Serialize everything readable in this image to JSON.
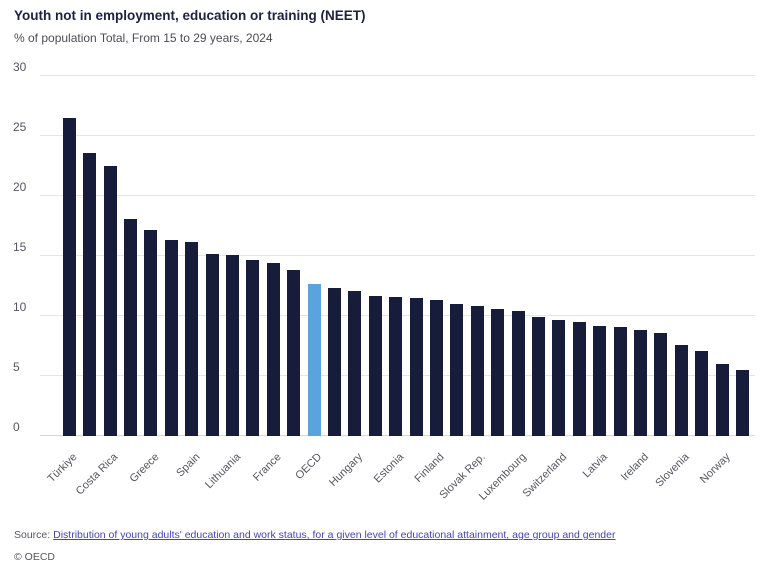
{
  "chart_data": {
    "type": "bar",
    "title": "Youth not in employment, education or training (NEET)",
    "subtitle": "% of population Total, From 15 to 29 years, 2024",
    "xlabel": "",
    "ylabel": "",
    "ylim": [
      0,
      30
    ],
    "yticks": [
      0,
      5,
      10,
      15,
      20,
      25,
      30
    ],
    "grid": true,
    "legend_position": "none",
    "colors": {
      "bar": "#171c3a",
      "highlight": "#5ba3dc",
      "grid": "#e4e5e9",
      "zero_line": "#d7d8dd",
      "axis_text": "#55565f",
      "title_text": "#1d2144",
      "link": "#4444bb"
    },
    "bars": [
      {
        "label": "Türkiye",
        "value": 26.5,
        "highlight": false
      },
      {
        "label": "",
        "value": 23.6,
        "highlight": false
      },
      {
        "label": "Costa Rica",
        "value": 22.5,
        "highlight": false
      },
      {
        "label": "",
        "value": 18.1,
        "highlight": false
      },
      {
        "label": "Greece",
        "value": 17.2,
        "highlight": false
      },
      {
        "label": "",
        "value": 16.3,
        "highlight": false
      },
      {
        "label": "Spain",
        "value": 16.2,
        "highlight": false
      },
      {
        "label": "",
        "value": 15.2,
        "highlight": false
      },
      {
        "label": "Lithuania",
        "value": 15.1,
        "highlight": false
      },
      {
        "label": "",
        "value": 14.7,
        "highlight": false
      },
      {
        "label": "France",
        "value": 14.4,
        "highlight": false
      },
      {
        "label": "",
        "value": 13.8,
        "highlight": false
      },
      {
        "label": "OECD",
        "value": 12.7,
        "highlight": true
      },
      {
        "label": "",
        "value": 12.3,
        "highlight": false
      },
      {
        "label": "Hungary",
        "value": 12.1,
        "highlight": false
      },
      {
        "label": "",
        "value": 11.7,
        "highlight": false
      },
      {
        "label": "Estonia",
        "value": 11.6,
        "highlight": false
      },
      {
        "label": "",
        "value": 11.5,
        "highlight": false
      },
      {
        "label": "Finland",
        "value": 11.3,
        "highlight": false
      },
      {
        "label": "",
        "value": 11.0,
        "highlight": false
      },
      {
        "label": "Slovak Rep.",
        "value": 10.8,
        "highlight": false
      },
      {
        "label": "",
        "value": 10.6,
        "highlight": false
      },
      {
        "label": "Luxembourg",
        "value": 10.4,
        "highlight": false
      },
      {
        "label": "",
        "value": 9.9,
        "highlight": false
      },
      {
        "label": "Switzerland",
        "value": 9.7,
        "highlight": false
      },
      {
        "label": "",
        "value": 9.5,
        "highlight": false
      },
      {
        "label": "Latvia",
        "value": 9.2,
        "highlight": false
      },
      {
        "label": "",
        "value": 9.1,
        "highlight": false
      },
      {
        "label": "Ireland",
        "value": 8.8,
        "highlight": false
      },
      {
        "label": "",
        "value": 8.6,
        "highlight": false
      },
      {
        "label": "Slovenia",
        "value": 7.6,
        "highlight": false
      },
      {
        "label": "",
        "value": 7.1,
        "highlight": false
      },
      {
        "label": "Norway",
        "value": 6.0,
        "highlight": false
      },
      {
        "label": "",
        "value": 5.5,
        "highlight": false
      }
    ]
  },
  "footer": {
    "source_label": "Source:",
    "source_link_text": "Distribution of young adults' education and work status, for a given level of educational attainment, age group and gender",
    "copyright": "© OECD"
  }
}
